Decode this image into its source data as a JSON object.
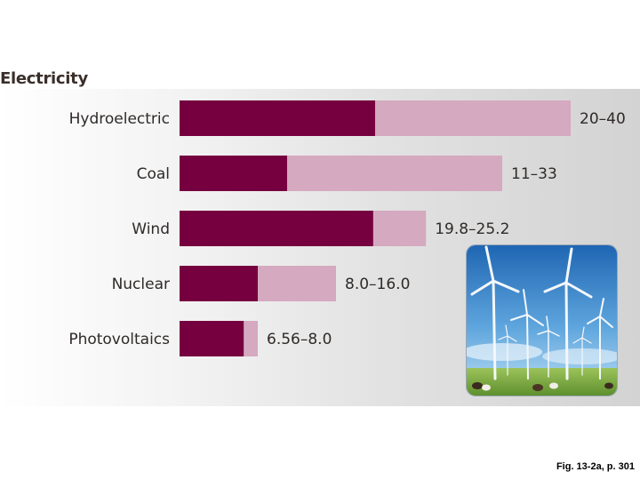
{
  "section_title": "Electricity",
  "caption": "Fig. 13-2a, p. 301",
  "colors": {
    "min_bar": "#76003f",
    "range_bar": "#d5a9bf"
  },
  "chart_data": {
    "type": "bar",
    "orientation": "horizontal",
    "categories": [
      "Hydroelectric",
      "Coal",
      "Wind",
      "Nuclear",
      "Photovoltaics"
    ],
    "range_labels": [
      "20–40",
      "11–33",
      "19.8–25.2",
      "8.0–16.0",
      "6.56–8.0"
    ],
    "series": [
      {
        "values": [
          20,
          11,
          19.8,
          8.0,
          6.56
        ]
      },
      {
        "values": [
          40,
          33,
          25.2,
          16.0,
          8.0
        ]
      }
    ],
    "xlim": [
      0,
      40
    ],
    "grid": false
  },
  "photo": {
    "icon": "wind-turbines-photo"
  }
}
